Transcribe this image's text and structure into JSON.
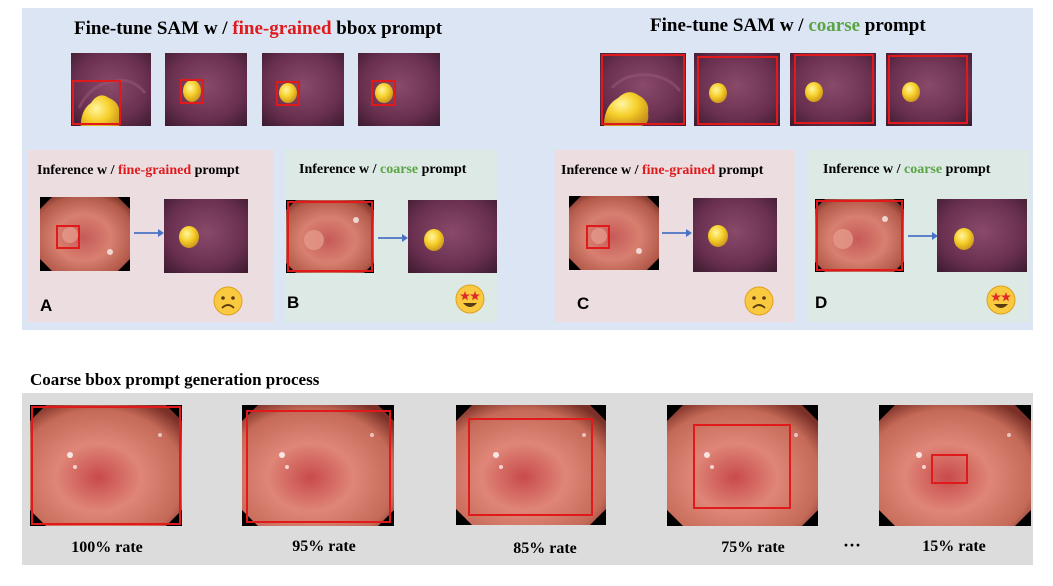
{
  "top": {
    "left_title": {
      "prefix": "Fine-tune SAM w / ",
      "highlight": "fine-grained",
      "suffix": " bbox prompt"
    },
    "right_title": {
      "prefix": "Fine-tune SAM w / ",
      "highlight": "coarse",
      "suffix": " prompt"
    },
    "panels": [
      {
        "letter": "A",
        "title_prefix": "Inference w / ",
        "title_highlight": "fine-grained",
        "title_suffix": " prompt",
        "emoji": "frowning-face-icon"
      },
      {
        "letter": "B",
        "title_prefix": "Inference w / ",
        "title_highlight": "coarse",
        "title_suffix": " prompt",
        "emoji": "star-struck-face-icon"
      },
      {
        "letter": "C",
        "title_prefix": "Inference w / ",
        "title_highlight": "fine-grained",
        "title_suffix": " prompt",
        "emoji": "frowning-face-icon"
      },
      {
        "letter": "D",
        "title_prefix": "Inference w / ",
        "title_highlight": "coarse",
        "title_suffix": " prompt",
        "emoji": "star-struck-face-icon"
      }
    ]
  },
  "bottom": {
    "title": "Coarse bbox prompt generation process",
    "rates": [
      "100% rate",
      "95% rate",
      "85% rate",
      "75% rate",
      "15% rate"
    ],
    "ellipsis": "···"
  },
  "colors": {
    "fine_grained": "#e0191b",
    "coarse": "#5aa446",
    "bbox": "#e0191b"
  }
}
